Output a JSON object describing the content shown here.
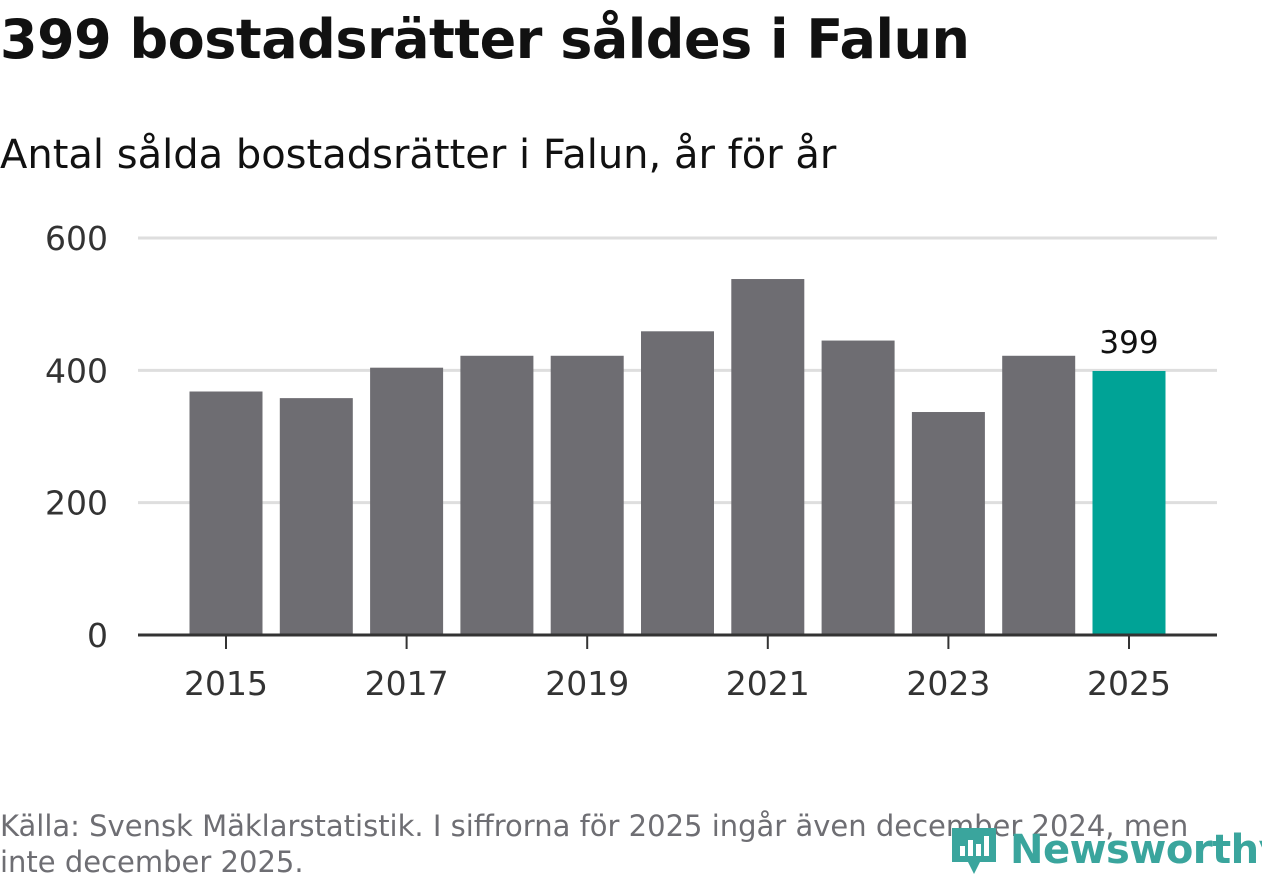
{
  "header": {
    "title": "399 bostadsrätter såldes i Falun",
    "subtitle": "Antal sålda bostadsrätter i Falun, år för år"
  },
  "chart_data": {
    "type": "bar",
    "title": "399 bostadsrätter såldes i Falun",
    "subtitle": "Antal sålda bostadsrätter i Falun, år för år",
    "categories": [
      "2015",
      "2016",
      "2017",
      "2018",
      "2019",
      "2020",
      "2021",
      "2022",
      "2023",
      "2024",
      "2025"
    ],
    "values": [
      368,
      358,
      404,
      422,
      422,
      459,
      538,
      445,
      337,
      422,
      399
    ],
    "x_tick_labels": [
      "2015",
      "2017",
      "2019",
      "2021",
      "2023",
      "2025"
    ],
    "y_ticks": [
      0,
      200,
      400,
      600
    ],
    "ylim": [
      0,
      600
    ],
    "grid": true,
    "highlight_index": 10,
    "highlight_label": "399",
    "colors": {
      "bar": "#6e6d72",
      "highlight": "#00a396",
      "grid": "#dedede",
      "axis": "#333333"
    }
  },
  "footer": {
    "source": "Källa: Svensk Mäklarstatistik. I siffrorna för 2025 ingår även december 2024, men inte december 2025.",
    "brand": "Newsworthy",
    "brand_icon": "newsworthy-logo-icon",
    "brand_color": "#3aa59d"
  }
}
